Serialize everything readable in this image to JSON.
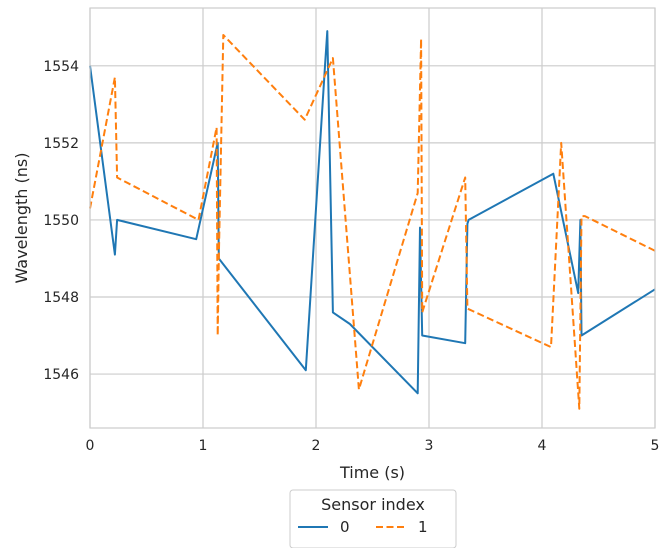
{
  "chart_data": {
    "type": "line",
    "title": "",
    "xlabel": "Time (s)",
    "ylabel": "Wavelength (ns)",
    "xlim": [
      0,
      5
    ],
    "ylim": [
      1544.6,
      1555.5
    ],
    "xticks": [
      0,
      1,
      2,
      3,
      4,
      5
    ],
    "yticks": [
      1546,
      1548,
      1550,
      1552,
      1554
    ],
    "grid": true,
    "legend": {
      "title": "Sensor index",
      "placement": "bottom-center, below plot"
    },
    "series": [
      {
        "name": "0",
        "color": "#1f77b4",
        "dash": "solid",
        "x": [
          0.0,
          0.22,
          0.24,
          0.94,
          1.13,
          1.14,
          1.91,
          2.08,
          2.1,
          2.15,
          2.3,
          2.9,
          2.92,
          2.94,
          3.32,
          3.34,
          3.35,
          4.1,
          4.32,
          4.34,
          4.35,
          5.0
        ],
        "y": [
          1554.0,
          1549.1,
          1550.0,
          1549.5,
          1552.0,
          1549.0,
          1546.1,
          1554.0,
          1554.9,
          1547.6,
          1547.3,
          1545.5,
          1549.8,
          1547.0,
          1546.8,
          1549.9,
          1550.0,
          1551.2,
          1548.1,
          1550.0,
          1547.0,
          1548.2
        ]
      },
      {
        "name": "1",
        "color": "#ff7f0e",
        "dash": "dashed",
        "x": [
          0.0,
          0.22,
          0.24,
          0.96,
          1.12,
          1.13,
          1.14,
          1.18,
          1.9,
          2.15,
          2.38,
          2.9,
          2.93,
          2.94,
          3.32,
          3.34,
          4.08,
          4.17,
          4.33,
          4.35,
          4.38,
          5.0
        ],
        "y": [
          1550.3,
          1553.7,
          1551.1,
          1550.0,
          1552.4,
          1547.0,
          1549.0,
          1554.8,
          1552.6,
          1554.2,
          1545.6,
          1550.7,
          1554.7,
          1547.6,
          1551.1,
          1547.7,
          1546.7,
          1552.0,
          1545.1,
          1550.1,
          1550.1,
          1549.2
        ]
      }
    ]
  }
}
